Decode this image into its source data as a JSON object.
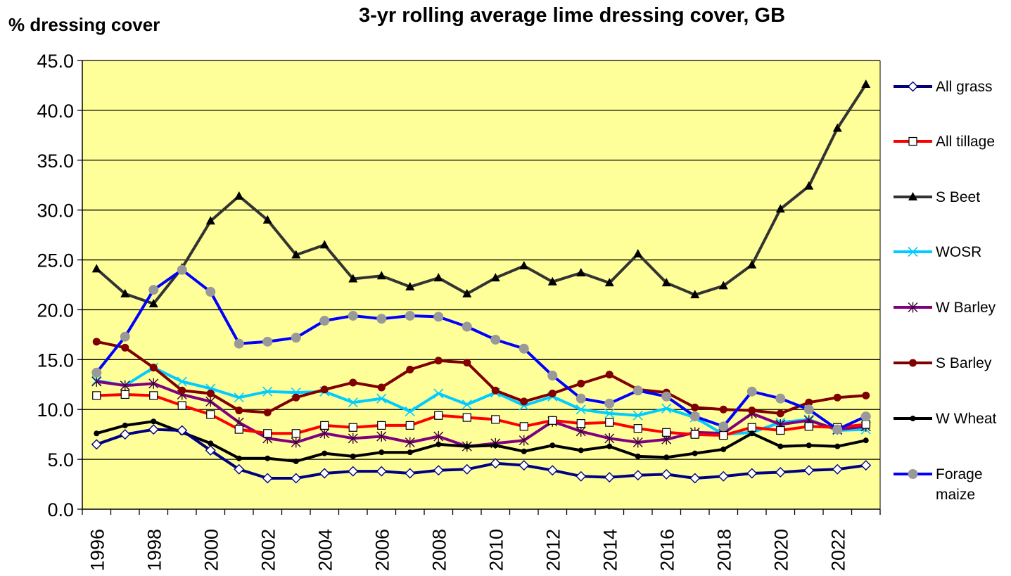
{
  "chart_data": {
    "type": "line",
    "title": "3-yr rolling average lime dressing cover, GB",
    "ylabel": "% dressing cover",
    "xlabel": "",
    "ylim": [
      0,
      45
    ],
    "ytick_labels": [
      "0.0",
      "5.0",
      "10.0",
      "15.0",
      "20.0",
      "25.0",
      "30.0",
      "35.0",
      "40.0",
      "45.0"
    ],
    "x": [
      1996,
      1997,
      1998,
      1999,
      2000,
      2001,
      2002,
      2003,
      2004,
      2005,
      2006,
      2007,
      2008,
      2009,
      2010,
      2011,
      2012,
      2013,
      2014,
      2015,
      2016,
      2017,
      2018,
      2019,
      2020,
      2021,
      2022,
      2023
    ],
    "xtick_labels": [
      "1996",
      "1998",
      "2000",
      "2002",
      "2004",
      "2006",
      "2008",
      "2010",
      "2012",
      "2014",
      "2016",
      "2018",
      "2020",
      "2022"
    ],
    "grid": true,
    "legend_position": "right",
    "plot_background": "#FFFF99",
    "series": [
      {
        "name": "All grass",
        "color": "#000080",
        "marker": "diamond",
        "values": [
          6.5,
          7.5,
          8.0,
          7.9,
          5.9,
          4.0,
          3.1,
          3.1,
          3.6,
          3.8,
          3.8,
          3.6,
          3.9,
          4.0,
          4.6,
          4.4,
          3.9,
          3.3,
          3.2,
          3.4,
          3.5,
          3.1,
          3.3,
          3.6,
          3.7,
          3.9,
          4.0,
          4.4
        ]
      },
      {
        "name": "All tillage",
        "color": "#FF0000",
        "marker": "square",
        "values": [
          11.4,
          11.5,
          11.4,
          10.4,
          9.5,
          8.0,
          7.6,
          7.6,
          8.4,
          8.2,
          8.4,
          8.4,
          9.4,
          9.2,
          9.0,
          8.3,
          8.9,
          8.6,
          8.7,
          8.1,
          7.7,
          7.5,
          7.4,
          8.2,
          7.9,
          8.3,
          8.2,
          8.5
        ]
      },
      {
        "name": "S Beet",
        "color": "#333333",
        "marker": "triangle",
        "values": [
          24.1,
          21.6,
          20.6,
          24.2,
          28.9,
          31.4,
          29.0,
          25.5,
          26.5,
          23.1,
          23.4,
          22.3,
          23.2,
          21.6,
          23.2,
          24.4,
          22.8,
          23.7,
          22.7,
          25.6,
          22.7,
          21.5,
          22.4,
          24.5,
          30.1,
          32.4,
          38.2,
          42.6
        ]
      },
      {
        "name": "WOSR",
        "color": "#00CCFF",
        "marker": "x",
        "values": [
          12.9,
          12.4,
          14.2,
          12.8,
          12.1,
          11.2,
          11.8,
          11.7,
          11.8,
          10.7,
          11.1,
          9.8,
          11.6,
          10.5,
          11.7,
          10.4,
          11.3,
          10.0,
          9.6,
          9.4,
          10.1,
          9.2,
          7.5,
          7.7,
          8.7,
          9.0,
          7.9,
          8.0
        ]
      },
      {
        "name": "W Barley",
        "color": "#800080",
        "marker": "asterisk",
        "values": [
          12.8,
          12.4,
          12.6,
          11.5,
          10.8,
          8.7,
          7.1,
          6.7,
          7.6,
          7.1,
          7.3,
          6.7,
          7.3,
          6.3,
          6.6,
          6.9,
          8.8,
          7.8,
          7.1,
          6.7,
          7.0,
          7.7,
          7.6,
          9.6,
          8.5,
          8.9,
          8.0,
          8.3
        ]
      },
      {
        "name": "S Barley",
        "color": "#800000",
        "marker": "circle",
        "values": [
          16.8,
          16.2,
          14.2,
          11.9,
          11.6,
          9.9,
          9.7,
          11.2,
          12.0,
          12.7,
          12.2,
          14.0,
          14.9,
          14.7,
          11.9,
          10.8,
          11.6,
          12.6,
          13.5,
          12.0,
          11.7,
          10.2,
          10.0,
          9.9,
          9.6,
          10.7,
          11.2,
          11.4
        ]
      },
      {
        "name": "W Wheat",
        "color": "#000000",
        "marker": "dot",
        "values": [
          7.6,
          8.4,
          8.8,
          7.7,
          6.6,
          5.1,
          5.1,
          4.8,
          5.6,
          5.3,
          5.7,
          5.7,
          6.5,
          6.3,
          6.4,
          5.8,
          6.4,
          5.9,
          6.3,
          5.3,
          5.2,
          5.6,
          6.0,
          7.6,
          6.3,
          6.4,
          6.3,
          6.9
        ]
      },
      {
        "name": "Forage maize",
        "label_lines": [
          "Forage",
          "maize"
        ],
        "color": "#0000FF",
        "marker": "gray-circle",
        "values": [
          13.7,
          17.3,
          22.0,
          24.0,
          21.8,
          16.6,
          16.8,
          17.2,
          18.9,
          19.4,
          19.1,
          19.4,
          19.3,
          18.3,
          17.0,
          16.1,
          13.4,
          11.1,
          10.6,
          11.9,
          11.3,
          9.3,
          8.3,
          11.8,
          11.1,
          10.0,
          8.0,
          9.3
        ]
      }
    ]
  }
}
